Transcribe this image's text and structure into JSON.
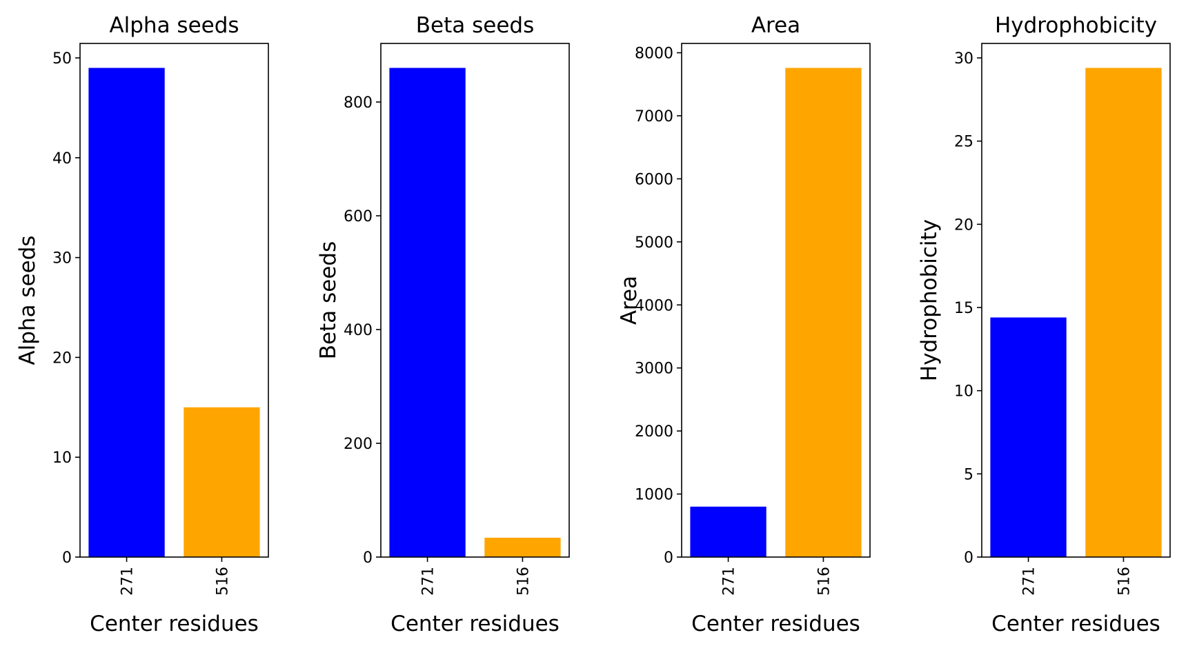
{
  "chart_data": [
    {
      "type": "bar",
      "title": "Alpha seeds",
      "xlabel": "Center residues",
      "ylabel": "Alpha seeds",
      "categories": [
        "271",
        "516"
      ],
      "values": [
        49,
        15
      ],
      "colors": [
        "#0000ff",
        "#ffa500"
      ],
      "ylim": [
        0,
        51.45
      ],
      "yticks": [
        0,
        10,
        20,
        30,
        40,
        50
      ],
      "grid": false
    },
    {
      "type": "bar",
      "title": "Beta seeds",
      "xlabel": "Center residues",
      "ylabel": "Beta seeds",
      "categories": [
        "271",
        "516"
      ],
      "values": [
        860,
        34
      ],
      "colors": [
        "#0000ff",
        "#ffa500"
      ],
      "ylim": [
        0,
        903
      ],
      "yticks": [
        0,
        200,
        400,
        600,
        800
      ],
      "grid": false
    },
    {
      "type": "bar",
      "title": "Area",
      "xlabel": "Center residues",
      "ylabel": "Area",
      "categories": [
        "271",
        "516"
      ],
      "values": [
        800,
        7760
      ],
      "colors": [
        "#0000ff",
        "#ffa500"
      ],
      "ylim": [
        0,
        8148
      ],
      "yticks": [
        0,
        1000,
        2000,
        3000,
        4000,
        5000,
        6000,
        7000,
        8000
      ],
      "grid": false
    },
    {
      "type": "bar",
      "title": "Hydrophobicity",
      "xlabel": "Center residues",
      "ylabel": "Hydrophobicity",
      "categories": [
        "271",
        "516"
      ],
      "values": [
        14.4,
        29.4
      ],
      "colors": [
        "#0000ff",
        "#ffa500"
      ],
      "ylim": [
        0,
        30.87
      ],
      "yticks": [
        0,
        5,
        10,
        15,
        20,
        25,
        30
      ],
      "grid": false
    }
  ]
}
